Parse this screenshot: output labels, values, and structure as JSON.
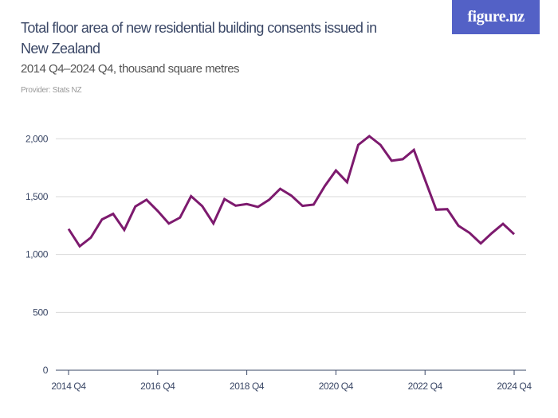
{
  "header": {
    "title": "Total floor area of new residential building consents issued in New Zealand",
    "subtitle": "2014 Q4–2024 Q4, thousand square metres",
    "provider": "Provider: Stats NZ",
    "logo": "figure.nz"
  },
  "colors": {
    "line": "#7d1a6e",
    "logo_bg": "#5361c6",
    "grid": "#d9d9d9",
    "text": "#3a4766"
  },
  "chart_data": {
    "type": "line",
    "title": "Total floor area of new residential building consents issued in New Zealand",
    "subtitle": "2014 Q4–2024 Q4, thousand square metres",
    "xlabel": "",
    "ylabel": "",
    "ylim": [
      0,
      2000
    ],
    "yticks": [
      0,
      500,
      1000,
      1500,
      2000
    ],
    "ytick_labels": [
      "0",
      "500",
      "1,000",
      "1,500",
      "2,000"
    ],
    "xtick_labels": [
      "2014 Q4",
      "2016 Q4",
      "2018 Q4",
      "2020 Q4",
      "2022 Q4",
      "2024 Q4"
    ],
    "grid": true,
    "legend": "none",
    "x": [
      "2014 Q4",
      "2015 Q1",
      "2015 Q2",
      "2015 Q3",
      "2015 Q4",
      "2016 Q1",
      "2016 Q2",
      "2016 Q3",
      "2016 Q4",
      "2017 Q1",
      "2017 Q2",
      "2017 Q3",
      "2017 Q4",
      "2018 Q1",
      "2018 Q2",
      "2018 Q3",
      "2018 Q4",
      "2019 Q1",
      "2019 Q2",
      "2019 Q3",
      "2019 Q4",
      "2020 Q1",
      "2020 Q2",
      "2020 Q3",
      "2020 Q4",
      "2021 Q1",
      "2021 Q2",
      "2021 Q3",
      "2021 Q4",
      "2022 Q1",
      "2022 Q2",
      "2022 Q3",
      "2022 Q4",
      "2023 Q1",
      "2023 Q2",
      "2023 Q3",
      "2023 Q4",
      "2024 Q1",
      "2024 Q2",
      "2024 Q3",
      "2024 Q4"
    ],
    "series": [
      {
        "values": [
          1221,
          1071,
          1146,
          1303,
          1351,
          1212,
          1415,
          1473,
          1377,
          1267,
          1319,
          1504,
          1418,
          1269,
          1479,
          1422,
          1436,
          1411,
          1473,
          1568,
          1509,
          1420,
          1431,
          1591,
          1726,
          1625,
          1947,
          2023,
          1947,
          1810,
          1824,
          1904,
          1646,
          1388,
          1392,
          1249,
          1187,
          1096,
          1185,
          1265,
          1175
        ]
      }
    ]
  }
}
